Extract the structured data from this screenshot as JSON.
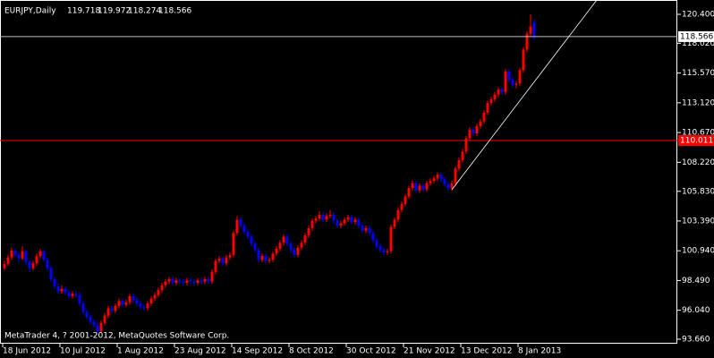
{
  "chart_data": {
    "type": "candlestick",
    "title": "EURJPY,Daily",
    "footer": "MetaTrader 4, ? 2001-2012, MetaQuotes Software Corp.",
    "bull_color": "#ff0000",
    "bear_color": "#0000ff",
    "ylim": [
      93.29,
      121.58
    ],
    "yticks": [
      {
        "value": 120.4,
        "label": "120.400"
      },
      {
        "value": 118.02,
        "label": "118.020"
      },
      {
        "value": 115.57,
        "label": "115.570"
      },
      {
        "value": 113.12,
        "label": "113.120"
      },
      {
        "value": 110.67,
        "label": "110.670"
      },
      {
        "value": 108.22,
        "label": "108.220"
      },
      {
        "value": 105.83,
        "label": "105.830"
      },
      {
        "value": 103.39,
        "label": "103.390"
      },
      {
        "value": 100.94,
        "label": "100.940"
      },
      {
        "value": 98.49,
        "label": "98.490"
      },
      {
        "value": 96.04,
        "label": "96.040"
      },
      {
        "value": 93.66,
        "label": "93.660"
      }
    ],
    "xticks": [
      {
        "value": 0,
        "label": "18 Jun 2012"
      },
      {
        "value": 16,
        "label": "10 Jul 2012"
      },
      {
        "value": 32,
        "label": "1 Aug 2012"
      },
      {
        "value": 48,
        "label": "23 Aug 2012"
      },
      {
        "value": 64,
        "label": "14 Sep 2012"
      },
      {
        "value": 80,
        "label": "8 Oct 2012"
      },
      {
        "value": 96,
        "label": "30 Oct 2012"
      },
      {
        "value": 112,
        "label": "21 Nov 2012"
      },
      {
        "value": 128,
        "label": "13 Dec 2012"
      },
      {
        "value": 144,
        "label": "8 Jan 2013"
      }
    ],
    "hline": {
      "value": 110.011,
      "color": "#ff0000"
    },
    "trendline": {
      "x": [
        125,
        165.5
      ],
      "y": [
        105.96,
        121.58
      ]
    },
    "candles": [
      [
        99.5,
        100.1,
        99.3,
        99.85
      ],
      [
        99.85,
        100.6,
        99.7,
        100.4
      ],
      [
        100.4,
        101.2,
        100.2,
        100.95
      ],
      [
        100.95,
        101.1,
        100.4,
        100.6
      ],
      [
        100.6,
        100.8,
        100.0,
        100.3
      ],
      [
        100.3,
        101.3,
        100.2,
        100.9
      ],
      [
        100.9,
        101.0,
        99.8,
        100.0
      ],
      [
        100.0,
        100.2,
        99.2,
        99.5
      ],
      [
        99.5,
        100.1,
        99.3,
        99.9
      ],
      [
        99.9,
        100.7,
        99.7,
        100.5
      ],
      [
        100.5,
        101.1,
        100.3,
        100.9
      ],
      [
        100.9,
        101.0,
        100.0,
        100.2
      ],
      [
        100.2,
        100.4,
        99.3,
        99.5
      ],
      [
        99.5,
        99.7,
        98.4,
        98.6
      ],
      [
        98.6,
        98.8,
        97.8,
        98.0
      ],
      [
        98.0,
        98.2,
        97.4,
        97.6
      ],
      [
        97.6,
        98.1,
        97.4,
        97.8
      ],
      [
        97.8,
        98.0,
        97.3,
        97.5
      ],
      [
        97.5,
        97.7,
        97.0,
        97.2
      ],
      [
        97.2,
        97.6,
        97.0,
        97.4
      ],
      [
        97.4,
        97.6,
        97.1,
        97.3
      ],
      [
        97.3,
        97.5,
        96.4,
        96.6
      ],
      [
        96.6,
        96.8,
        95.7,
        95.9
      ],
      [
        95.9,
        96.1,
        95.3,
        95.5
      ],
      [
        95.5,
        95.7,
        94.9,
        95.1
      ],
      [
        95.1,
        95.3,
        94.6,
        94.8
      ],
      [
        94.8,
        95.0,
        94.1,
        94.3
      ],
      [
        94.3,
        95.2,
        94.2,
        95.0
      ],
      [
        95.0,
        95.8,
        94.8,
        95.6
      ],
      [
        95.6,
        96.4,
        95.4,
        96.2
      ],
      [
        96.2,
        96.4,
        95.8,
        96.0
      ],
      [
        96.0,
        96.6,
        95.8,
        96.4
      ],
      [
        96.4,
        97.0,
        96.2,
        96.8
      ],
      [
        96.8,
        97.0,
        96.3,
        96.5
      ],
      [
        96.5,
        96.9,
        96.3,
        96.7
      ],
      [
        96.7,
        97.4,
        96.5,
        97.2
      ],
      [
        97.2,
        97.4,
        96.7,
        96.9
      ],
      [
        96.9,
        97.1,
        96.4,
        96.6
      ],
      [
        96.6,
        96.8,
        96.1,
        96.3
      ],
      [
        96.3,
        96.5,
        96.0,
        96.2
      ],
      [
        96.2,
        96.8,
        96.0,
        96.6
      ],
      [
        96.6,
        97.2,
        96.4,
        97.0
      ],
      [
        97.0,
        97.5,
        96.8,
        97.3
      ],
      [
        97.3,
        97.9,
        97.1,
        97.7
      ],
      [
        97.7,
        98.3,
        97.5,
        98.1
      ],
      [
        98.1,
        98.6,
        97.9,
        98.4
      ],
      [
        98.4,
        98.8,
        98.2,
        98.6
      ],
      [
        98.6,
        98.8,
        98.1,
        98.3
      ],
      [
        98.3,
        98.7,
        98.1,
        98.5
      ],
      [
        98.5,
        98.7,
        98.2,
        98.4
      ],
      [
        98.4,
        98.6,
        98.1,
        98.3
      ],
      [
        98.3,
        98.7,
        98.1,
        98.5
      ],
      [
        98.5,
        98.7,
        98.2,
        98.4
      ],
      [
        98.4,
        98.6,
        98.1,
        98.3
      ],
      [
        98.3,
        98.7,
        98.1,
        98.5
      ],
      [
        98.5,
        98.7,
        98.2,
        98.4
      ],
      [
        98.4,
        98.8,
        98.2,
        98.6
      ],
      [
        98.6,
        98.8,
        98.2,
        98.4
      ],
      [
        98.4,
        99.4,
        98.2,
        99.2
      ],
      [
        99.2,
        100.3,
        99.0,
        100.1
      ],
      [
        100.1,
        100.5,
        99.9,
        100.3
      ],
      [
        100.3,
        100.5,
        99.7,
        99.9
      ],
      [
        99.9,
        100.6,
        99.7,
        100.4
      ],
      [
        100.4,
        100.8,
        100.2,
        100.6
      ],
      [
        100.6,
        102.6,
        100.4,
        102.4
      ],
      [
        102.4,
        103.8,
        102.2,
        103.5
      ],
      [
        103.5,
        103.7,
        102.8,
        103.0
      ],
      [
        103.0,
        103.2,
        102.3,
        102.5
      ],
      [
        102.5,
        102.7,
        101.9,
        102.1
      ],
      [
        102.1,
        102.3,
        101.3,
        101.5
      ],
      [
        101.5,
        101.7,
        100.8,
        101.0
      ],
      [
        101.0,
        101.2,
        100.0,
        100.2
      ],
      [
        100.2,
        100.7,
        100.0,
        100.5
      ],
      [
        100.5,
        100.7,
        99.9,
        100.1
      ],
      [
        100.1,
        100.4,
        99.9,
        100.2
      ],
      [
        100.2,
        100.9,
        100.0,
        100.7
      ],
      [
        100.7,
        101.3,
        100.5,
        101.1
      ],
      [
        101.1,
        101.8,
        100.9,
        101.6
      ],
      [
        101.6,
        102.3,
        101.4,
        102.1
      ],
      [
        102.1,
        102.3,
        101.3,
        101.5
      ],
      [
        101.5,
        101.7,
        100.8,
        101.0
      ],
      [
        101.0,
        101.2,
        100.4,
        100.6
      ],
      [
        100.6,
        101.4,
        100.4,
        101.2
      ],
      [
        101.2,
        101.8,
        101.0,
        101.6
      ],
      [
        101.6,
        102.4,
        101.4,
        102.2
      ],
      [
        102.2,
        103.0,
        102.0,
        102.8
      ],
      [
        102.8,
        103.6,
        102.6,
        103.4
      ],
      [
        103.4,
        103.8,
        103.2,
        103.6
      ],
      [
        103.6,
        104.2,
        103.4,
        103.9
      ],
      [
        103.9,
        104.1,
        103.3,
        103.5
      ],
      [
        103.5,
        104.0,
        103.3,
        103.8
      ],
      [
        103.8,
        104.3,
        103.6,
        103.9
      ],
      [
        103.9,
        104.1,
        103.2,
        103.4
      ],
      [
        103.4,
        103.6,
        102.8,
        103.0
      ],
      [
        103.0,
        103.4,
        102.8,
        103.2
      ],
      [
        103.2,
        103.7,
        103.0,
        103.5
      ],
      [
        103.5,
        103.9,
        103.3,
        103.7
      ],
      [
        103.7,
        103.9,
        103.1,
        103.3
      ],
      [
        103.3,
        103.7,
        103.1,
        103.5
      ],
      [
        103.5,
        103.7,
        102.8,
        103.0
      ],
      [
        103.0,
        103.2,
        102.4,
        102.6
      ],
      [
        102.6,
        103.0,
        102.4,
        102.8
      ],
      [
        102.8,
        103.0,
        102.2,
        102.4
      ],
      [
        102.4,
        102.6,
        101.6,
        101.8
      ],
      [
        101.8,
        102.0,
        101.1,
        101.3
      ],
      [
        101.3,
        101.5,
        100.8,
        101.0
      ],
      [
        101.0,
        101.2,
        100.6,
        100.8
      ],
      [
        100.8,
        101.1,
        100.6,
        100.9
      ],
      [
        100.9,
        103.1,
        100.7,
        102.9
      ],
      [
        102.9,
        103.7,
        102.7,
        103.5
      ],
      [
        103.5,
        104.5,
        103.3,
        104.3
      ],
      [
        104.3,
        105.0,
        104.1,
        104.8
      ],
      [
        104.8,
        105.6,
        104.6,
        105.4
      ],
      [
        105.4,
        106.3,
        105.2,
        106.1
      ],
      [
        106.1,
        106.7,
        105.9,
        106.5
      ],
      [
        106.5,
        106.7,
        105.7,
        105.9
      ],
      [
        105.9,
        106.5,
        105.7,
        106.3
      ],
      [
        106.3,
        106.5,
        105.8,
        106.0
      ],
      [
        106.0,
        106.7,
        105.8,
        106.5
      ],
      [
        106.5,
        106.9,
        106.3,
        106.7
      ],
      [
        106.7,
        107.1,
        106.5,
        106.9
      ],
      [
        106.9,
        107.4,
        106.7,
        107.2
      ],
      [
        107.2,
        107.4,
        106.6,
        106.8
      ],
      [
        106.8,
        107.0,
        106.2,
        106.4
      ],
      [
        106.4,
        106.6,
        105.9,
        106.1
      ],
      [
        106.1,
        106.7,
        105.9,
        106.5
      ],
      [
        106.5,
        107.9,
        106.3,
        107.7
      ],
      [
        107.7,
        108.6,
        107.5,
        108.4
      ],
      [
        108.4,
        109.3,
        108.2,
        109.1
      ],
      [
        109.1,
        110.4,
        108.9,
        110.2
      ],
      [
        110.2,
        111.1,
        110.0,
        110.9
      ],
      [
        110.9,
        111.1,
        110.4,
        110.6
      ],
      [
        110.6,
        111.4,
        110.4,
        111.2
      ],
      [
        111.2,
        111.8,
        111.0,
        111.6
      ],
      [
        111.6,
        112.5,
        111.4,
        112.3
      ],
      [
        112.3,
        113.3,
        112.1,
        113.1
      ],
      [
        113.1,
        113.6,
        112.9,
        113.4
      ],
      [
        113.4,
        114.0,
        113.2,
        113.8
      ],
      [
        113.8,
        114.4,
        113.6,
        114.2
      ],
      [
        114.2,
        114.4,
        113.8,
        114.0
      ],
      [
        114.0,
        115.9,
        113.8,
        115.7
      ],
      [
        115.7,
        115.9,
        114.8,
        115.0
      ],
      [
        115.0,
        115.2,
        114.4,
        114.6
      ],
      [
        114.6,
        114.9,
        114.3,
        114.7
      ],
      [
        114.7,
        116.0,
        114.5,
        115.8
      ],
      [
        115.8,
        117.7,
        115.6,
        117.5
      ],
      [
        117.5,
        119.0,
        117.3,
        118.8
      ],
      [
        118.8,
        120.4,
        118.6,
        119.4
      ],
      [
        119.718,
        119.972,
        118.274,
        118.566
      ]
    ]
  }
}
